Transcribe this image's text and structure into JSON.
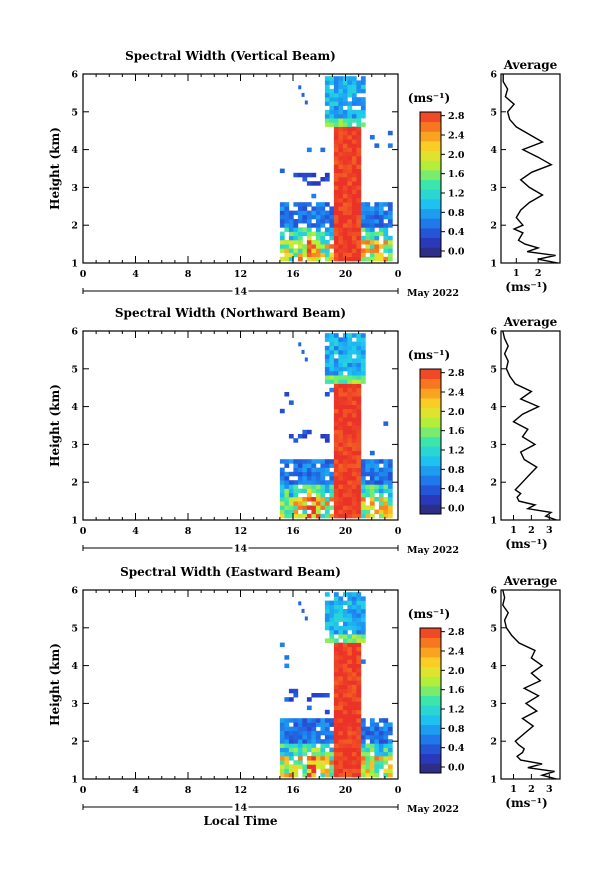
{
  "common": {
    "xlabel": "Local Time",
    "ylabel": "Height (km)",
    "date_label": "May 2022",
    "day_label": "14",
    "unit_label": "(ms⁻¹)",
    "avg_title": "Average"
  },
  "chart_data": [
    {
      "type": "heatmap",
      "title": "Spectral Width (Vertical Beam)",
      "xlabel": "",
      "ylabel": "Height (km)",
      "x_ticks": [
        "0",
        "4",
        "8",
        "12",
        "16",
        "20",
        "0"
      ],
      "x_range_hours": [
        0,
        24
      ],
      "ylim": [
        1,
        6
      ],
      "y_ticks": [
        "1",
        "2",
        "3",
        "4",
        "5",
        "6"
      ],
      "colorbar": {
        "label": "(ms⁻¹)",
        "range": [
          0.0,
          3.0
        ],
        "ticks": [
          "0.0",
          "0.4",
          "0.8",
          "1.2",
          "1.6",
          "2.0",
          "2.4",
          "2.8"
        ]
      },
      "average_profile": {
        "title": "Average",
        "xlabel": "(ms⁻¹)",
        "x_ticks": [
          "1",
          "2"
        ],
        "xlim": [
          0.3,
          3.0
        ],
        "heights_km": [
          1.0,
          1.1,
          1.2,
          1.3,
          1.4,
          1.5,
          1.6,
          1.7,
          1.8,
          1.9,
          2.0,
          2.2,
          2.4,
          2.6,
          2.8,
          3.0,
          3.2,
          3.4,
          3.6,
          3.8,
          4.0,
          4.2,
          4.4,
          4.6,
          4.8,
          5.0,
          5.2,
          5.4,
          5.6,
          5.8,
          6.0
        ],
        "values": [
          2.9,
          2.0,
          2.8,
          1.5,
          2.0,
          1.4,
          1.1,
          1.2,
          1.3,
          0.9,
          1.3,
          1.0,
          1.2,
          1.6,
          2.2,
          1.6,
          1.2,
          1.7,
          2.6,
          2.0,
          1.3,
          2.2,
          1.6,
          1.0,
          0.7,
          0.6,
          0.9,
          0.5,
          0.6,
          0.4,
          0.4
        ]
      }
    },
    {
      "type": "heatmap",
      "title": "Spectral Width (Northward Beam)",
      "xlabel": "",
      "ylabel": "Height (km)",
      "x_ticks": [
        "0",
        "4",
        "8",
        "12",
        "16",
        "20",
        "0"
      ],
      "x_range_hours": [
        0,
        24
      ],
      "ylim": [
        1,
        6
      ],
      "y_ticks": [
        "1",
        "2",
        "3",
        "4",
        "5",
        "6"
      ],
      "colorbar": {
        "label": "(ms⁻¹)",
        "range": [
          0.0,
          3.0
        ],
        "ticks": [
          "0.0",
          "0.4",
          "0.8",
          "1.2",
          "1.6",
          "2.0",
          "2.4",
          "2.8"
        ]
      },
      "average_profile": {
        "title": "Average",
        "xlabel": "(ms⁻¹)",
        "x_ticks": [
          "1",
          "2",
          "3"
        ],
        "xlim": [
          0.3,
          3.6
        ],
        "heights_km": [
          1.0,
          1.1,
          1.2,
          1.3,
          1.4,
          1.5,
          1.6,
          1.7,
          1.8,
          1.9,
          2.0,
          2.2,
          2.4,
          2.6,
          2.8,
          3.0,
          3.2,
          3.4,
          3.6,
          3.8,
          4.0,
          4.2,
          4.4,
          4.6,
          4.8,
          5.0,
          5.2,
          5.4,
          5.6,
          5.8,
          6.0
        ],
        "values": [
          3.4,
          2.8,
          3.1,
          1.8,
          2.2,
          1.3,
          1.2,
          1.4,
          1.1,
          1.3,
          1.5,
          1.9,
          2.3,
          1.6,
          1.4,
          2.2,
          1.5,
          1.8,
          1.0,
          1.5,
          2.4,
          1.4,
          2.0,
          1.1,
          0.8,
          0.6,
          0.7,
          0.5,
          0.7,
          0.5,
          0.4
        ]
      }
    },
    {
      "type": "heatmap",
      "title": "Spectral Width (Eastward Beam)",
      "xlabel": "Local Time",
      "ylabel": "Height (km)",
      "x_ticks": [
        "0",
        "4",
        "8",
        "12",
        "16",
        "20",
        "0"
      ],
      "x_range_hours": [
        0,
        24
      ],
      "ylim": [
        1,
        6
      ],
      "y_ticks": [
        "1",
        "2",
        "3",
        "4",
        "5",
        "6"
      ],
      "colorbar": {
        "label": "(ms⁻¹)",
        "range": [
          0.0,
          3.0
        ],
        "ticks": [
          "0.0",
          "0.4",
          "0.8",
          "1.2",
          "1.6",
          "2.0",
          "2.4",
          "2.8"
        ]
      },
      "average_profile": {
        "title": "Average",
        "xlabel": "(ms⁻¹)",
        "x_ticks": [
          "1",
          "2",
          "3"
        ],
        "xlim": [
          0.3,
          3.6
        ],
        "heights_km": [
          1.0,
          1.1,
          1.2,
          1.3,
          1.4,
          1.5,
          1.6,
          1.7,
          1.8,
          1.9,
          2.0,
          2.2,
          2.4,
          2.6,
          2.8,
          3.0,
          3.2,
          3.4,
          3.6,
          3.8,
          4.0,
          4.2,
          4.4,
          4.6,
          4.8,
          5.0,
          5.2,
          5.4,
          5.6,
          5.8,
          6.0
        ],
        "values": [
          3.4,
          2.6,
          3.3,
          1.8,
          2.6,
          1.4,
          1.2,
          1.5,
          1.6,
          1.3,
          1.1,
          1.6,
          2.1,
          1.5,
          2.3,
          1.7,
          2.4,
          1.6,
          2.5,
          2.0,
          2.6,
          2.0,
          2.2,
          1.3,
          0.9,
          0.6,
          0.5,
          0.7,
          0.4,
          0.5,
          0.4
        ]
      }
    }
  ]
}
